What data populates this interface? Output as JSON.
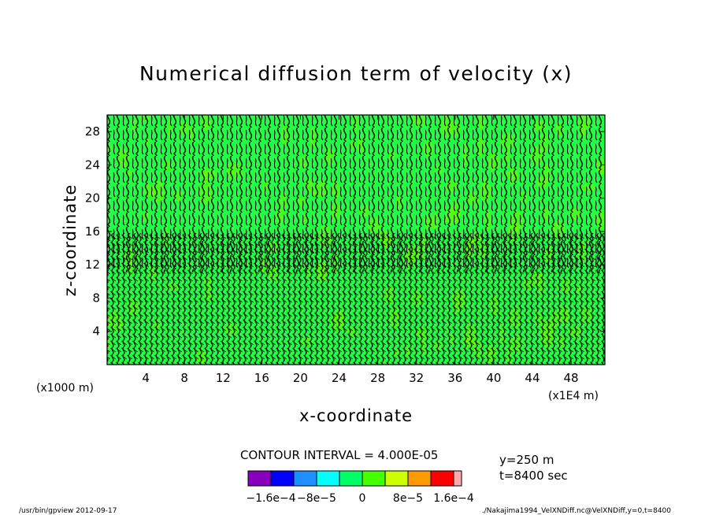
{
  "chart_data": {
    "type": "heatmap",
    "title": "Numerical diffusion term of velocity (x)",
    "xlabel": "x-coordinate",
    "ylabel": "z-coordinate",
    "x_unit_left": "(x1000 m)",
    "x_unit_right": "(x1E4 m)",
    "xlim": [
      0,
      51.5
    ],
    "ylim": [
      0,
      30
    ],
    "xticks": [
      4,
      8,
      12,
      16,
      20,
      24,
      28,
      32,
      36,
      40,
      44,
      48
    ],
    "yticks": [
      4,
      8,
      12,
      16,
      20,
      24,
      28
    ],
    "xtick_labels": [
      "4",
      "8",
      "12",
      "16",
      "20",
      "24",
      "28",
      "32",
      "36",
      "40",
      "44",
      "48"
    ],
    "ytick_labels": [
      "4",
      "8",
      "12",
      "16",
      "20",
      "24",
      "28"
    ],
    "contour_interval_text": "CONTOUR INTERVAL = 4.000E-05",
    "info_lines": [
      "y=250  m",
      "t=8400  sec"
    ],
    "colorbar": {
      "colors": [
        "#8800bb",
        "#0000ff",
        "#1f8fff",
        "#00ffff",
        "#00ff66",
        "#44ff00",
        "#ccff00",
        "#ff9900",
        "#ff0000",
        "#ffaaaa"
      ],
      "labels": [
        "−1.6e−4",
        "−8e−5",
        "0",
        "8e−5",
        "1.6e−4"
      ],
      "label_values": [
        -0.00016,
        -8e-05,
        0,
        8e-05,
        0.00016
      ]
    },
    "field_colors": {
      "primary": "#22ff44",
      "secondary": "#66ff00",
      "contour": "#000000"
    },
    "footer_left": "/usr/bin/gpview   2012-09-17",
    "footer_right": "./Nakajima1994_VelXNDiff.nc@VelXNDiff,y=0,t=8400"
  }
}
